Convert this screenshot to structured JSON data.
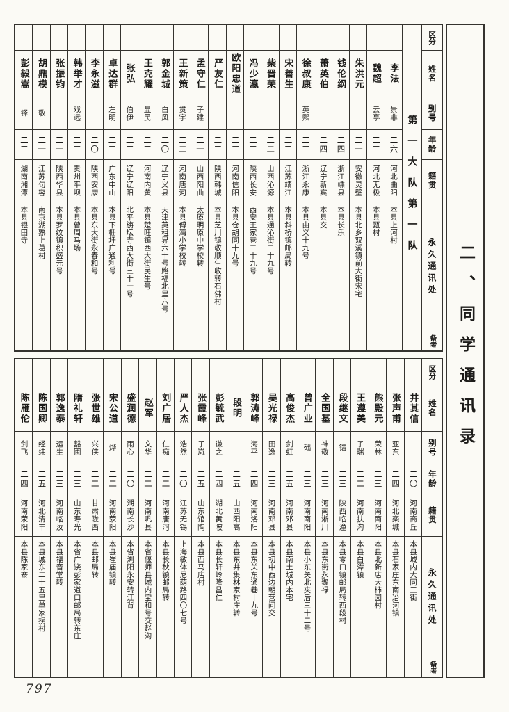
{
  "page": {
    "page_number": "797",
    "title": "二、同学通讯录",
    "unit": "第一大队第一队"
  },
  "headers": {
    "category": "区分",
    "name": "姓名",
    "alias": "别号",
    "age": "年龄",
    "native_place": "籍贯",
    "address": "永久通讯处",
    "remarks": "备考"
  },
  "table1": {
    "people": [
      {
        "name": "彭毅嵩",
        "alias": "铎",
        "age": "二三",
        "native_place": "湖南湘潭",
        "address": "本县银田寺"
      },
      {
        "name": "胡鼎模",
        "alias": "敬",
        "age": "二一",
        "native_place": "江苏句容",
        "address": "南京湖熟上葛村"
      },
      {
        "name": "张振钧",
        "alias": "",
        "age": "二一",
        "native_place": "陕西华县",
        "address": "本县罗纹镇积盛元号"
      },
      {
        "name": "韩举才",
        "alias": "戏远",
        "age": "二三",
        "native_place": "贵州平坝",
        "address": "本县曾周马场"
      },
      {
        "name": "李永滋",
        "alias": "",
        "age": "二〇",
        "native_place": "陕西安康",
        "address": "本县东大街永春和号"
      },
      {
        "name": "卓达群",
        "alias": "左明",
        "age": "二三",
        "native_place": "广东中山",
        "address": "本县下栅圩广通利号"
      },
      {
        "name": "张弘",
        "alias": "伯伊",
        "age": "二三",
        "native_place": "辽宁辽阳",
        "address": "北平旃坛寺西大街三十一号"
      },
      {
        "name": "王克耀",
        "alias": "显民",
        "age": "二三",
        "native_place": "河南内黄",
        "address": "本县楚旺镇西大街民生号"
      },
      {
        "name": "郭金城",
        "alias": "白风",
        "age": "二〇",
        "native_place": "辽宁义县",
        "address": "天津英租界六十号路福北里六号"
      },
      {
        "name": "王新策",
        "alias": "贯宇",
        "age": "二二",
        "native_place": "河南唐河",
        "address": "本县傅湾小学校转"
      },
      {
        "name": "孟守仁",
        "alias": "子建",
        "age": "二一",
        "native_place": "山西阳曲",
        "address": "太原明原中学校转"
      },
      {
        "name": "严友仁",
        "alias": "",
        "age": "二三",
        "native_place": "陕西韩城",
        "address": "本县芝川镇敬顺生收转石佛村"
      },
      {
        "name": "欧阳忠道",
        "alias": "",
        "age": "二三",
        "native_place": "河南信阳",
        "address": "本县仓胡同十九号"
      },
      {
        "name": "冯少瀛",
        "alias": "",
        "age": "二三",
        "native_place": "陕西长安",
        "address": "西安王家巷二十九号"
      },
      {
        "name": "柴晋荣",
        "alias": "",
        "age": "二二",
        "native_place": "山西沁源",
        "address": "本县通沁街二十九号"
      },
      {
        "name": "宋善生",
        "alias": "",
        "age": "二三",
        "native_place": "江苏靖江",
        "address": "本县斜桥镇邮局转"
      },
      {
        "name": "徐叔康",
        "alias": "英熙",
        "age": "二三",
        "native_place": "浙江永康",
        "address": "本县由义十九号"
      },
      {
        "name": "萧英伯",
        "alias": "",
        "age": "二四",
        "native_place": "辽宁新宾",
        "address": "本县交"
      },
      {
        "name": "钱伦纲",
        "alias": "",
        "age": "二四",
        "native_place": "浙江嵊县",
        "address": "本县长乐"
      },
      {
        "name": "朱洪元",
        "alias": "",
        "age": "二一",
        "native_place": "安徽灵壁",
        "address": "本县北乡双溪镇前大街宋宅"
      },
      {
        "name": "魏超",
        "alias": "云亭",
        "age": "二三",
        "native_place": "河北无极",
        "address": "本县甄村"
      },
      {
        "name": "李法",
        "alias": "景非",
        "age": "二六",
        "native_place": "河北曲阳",
        "address": "本县上河村"
      }
    ]
  },
  "table2": {
    "people": [
      {
        "name": "陈雁伦",
        "alias": "剑飞",
        "age": "二四",
        "native_place": "河南荥阳",
        "address": "本县陈家寨"
      },
      {
        "name": "陈国卿",
        "alias": "经纬",
        "age": "二五",
        "native_place": "河北清丰",
        "address": "本县城东二十五里单家拐村"
      },
      {
        "name": "郭逸泰",
        "alias": "运生",
        "age": "二三",
        "native_place": "河南临汝",
        "address": "本县福音堂转"
      },
      {
        "name": "隋礼轩",
        "alias": "豁圃",
        "age": "二三",
        "native_place": "山东寿光",
        "address": "本省广饶彭家道口邮局转东庄"
      },
      {
        "name": "张世雄",
        "alias": "兴侠",
        "age": "二二",
        "native_place": "甘肃陇西",
        "address": "本县邮局转"
      },
      {
        "name": "宋公道",
        "alias": "烨",
        "age": "二二",
        "native_place": "河南荥阳",
        "address": "本县崔庙镇转"
      },
      {
        "name": "盛润德",
        "alias": "雨心",
        "age": "二〇",
        "native_place": "湖南长沙",
        "address": "本省浏阳永安转江背"
      },
      {
        "name": "赵军",
        "alias": "文华",
        "age": "二二",
        "native_place": "河南巩县",
        "address": "本省偃师县城内宝和号交赵沟"
      },
      {
        "name": "刘广居",
        "alias": "仁痴",
        "age": "二二",
        "native_place": "河南唐河",
        "address": "本县长秋镇邮局转"
      },
      {
        "name": "严人杰",
        "alias": "浩然",
        "age": "二〇",
        "native_place": "江苏无锡",
        "address": "上海敏体尼荫路四〇七号"
      },
      {
        "name": "张霞峰",
        "alias": "子岚",
        "age": "二五",
        "native_place": "山东馆陶",
        "address": "本县西马店村"
      },
      {
        "name": "彭毓武",
        "alias": "谦之",
        "age": "二四",
        "native_place": "湖北黄陂",
        "address": "本县长轩岭隆昌仁"
      },
      {
        "name": "段明",
        "alias": "",
        "age": "二五",
        "native_place": "山西阳高",
        "address": "本县东井集林家村庄转"
      },
      {
        "name": "郭涛峰",
        "alias": "海平",
        "age": "二四",
        "native_place": "河南洛阳",
        "address": "本县东关东通巷十九号"
      },
      {
        "name": "吴光禄",
        "alias": "田逸",
        "age": "二三",
        "native_place": "河南邓县",
        "address": "本县初中西边朝营问交"
      },
      {
        "name": "高俊杰",
        "alias": "剑虹",
        "age": "二五",
        "native_place": "河南邓县",
        "address": "本县南土城内本宅"
      },
      {
        "name": "曾广业",
        "alias": "础",
        "age": "二三",
        "native_place": "河南南阳",
        "address": "本县小东关北夹后三十二号"
      },
      {
        "name": "全国基",
        "alias": "神敬",
        "age": "二三",
        "native_place": "河南淅川",
        "address": "本县东街永聚禄"
      },
      {
        "name": "段继文",
        "alias": "镭",
        "age": "二三",
        "native_place": "陕西临潼",
        "address": "本县零口镇邮局转西段村"
      },
      {
        "name": "王遵美",
        "alias": "子瑞",
        "age": "二二",
        "native_place": "河南扶沟",
        "address": "本县白潭镇"
      },
      {
        "name": "熊殿元",
        "alias": "荣林",
        "age": "二三",
        "native_place": "河南南阳",
        "address": "本县北新店大柿园村"
      },
      {
        "name": "张声甫",
        "alias": "亚东",
        "age": "二四",
        "native_place": "河北栾城",
        "address": "本县石家庄东南冶河镇"
      },
      {
        "name": "井其信",
        "alias": "",
        "age": "二〇",
        "native_place": "河南商丘",
        "address": "本县城内大同三街"
      }
    ]
  }
}
